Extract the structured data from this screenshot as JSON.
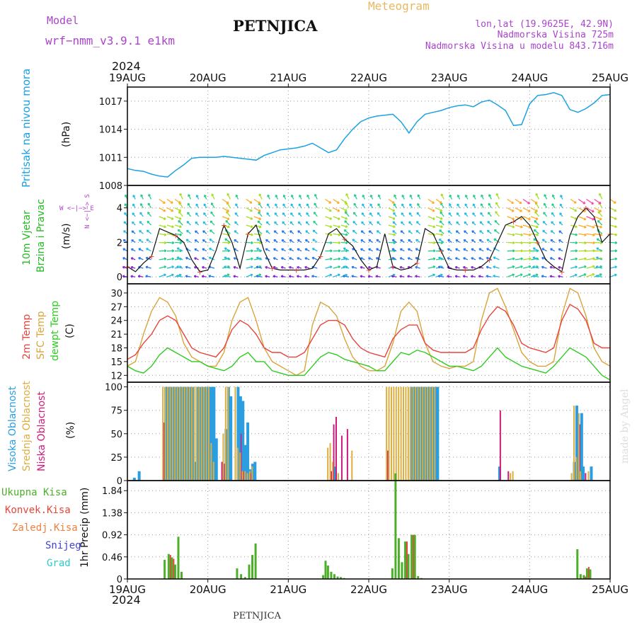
{
  "header": {
    "model_label": "Model",
    "model_name": "wrf−nmm_v3.9.1  e1km",
    "station": "PETNJICA",
    "product": "Meteogram",
    "lonlat": "lon,lat (19.9625E, 42.9N)",
    "elevation": "Nadmorska Visina 725m",
    "model_elevation": "Nadmorska Visina u modelu 843.716m",
    "year_top": "2024",
    "year_bottom": "2024",
    "footer_station": "PETNJICA",
    "watermark": "made by Angel"
  },
  "colors": {
    "pressure": "#1ba1e2",
    "wind_label": "#22bb22",
    "dir_label": "#aa44cc",
    "temp2m": "#e8443c",
    "sfc": "#d9a43a",
    "dew": "#2ecc1f",
    "high_cloud": "#2a9ee0",
    "mid_cloud": "#dcae40",
    "low_cloud": "#d01a7a",
    "precip_total": "#4caf2a",
    "precip_conv": "#e8443c",
    "precip_frz": "#f08040",
    "snow": "#4040dd",
    "hail": "#30c8c8"
  },
  "x_axis": {
    "labels": [
      "19AUG",
      "20AUG",
      "21AUG",
      "22AUG",
      "23AUG",
      "24AUG",
      "25AUG"
    ]
  },
  "chart_data": [
    {
      "type": "line",
      "panel": "pressure",
      "title": "Pritisak na nivou mora",
      "ylabel": "(hPa)",
      "ylim": [
        1008,
        1018.5
      ],
      "yticks": [
        "1008",
        "1011",
        "1014",
        "1017"
      ],
      "x_days": [
        0,
        0.1,
        0.2,
        0.3,
        0.4,
        0.5,
        0.6,
        0.7,
        0.8,
        0.9,
        1.0,
        1.1,
        1.2,
        1.3,
        1.4,
        1.5,
        1.6,
        1.7,
        1.8,
        1.9,
        2.0,
        2.1,
        2.2,
        2.3,
        2.4,
        2.5,
        2.6,
        2.7,
        2.8,
        2.9,
        3.0,
        3.1,
        3.2,
        3.3,
        3.4,
        3.5,
        3.6,
        3.7,
        3.8,
        3.9,
        4.0,
        4.1,
        4.2,
        4.3,
        4.4,
        4.5,
        4.6,
        4.7,
        4.8,
        4.9,
        5.0,
        5.1,
        5.2,
        5.3,
        5.4,
        5.5,
        5.6,
        5.7,
        5.8,
        5.9,
        6.0
      ],
      "values": [
        1009.8,
        1009.6,
        1009.5,
        1009.2,
        1009.0,
        1008.9,
        1009.6,
        1010.2,
        1010.9,
        1011.0,
        1011.0,
        1011.0,
        1011.1,
        1011.0,
        1010.9,
        1010.8,
        1010.7,
        1011.2,
        1011.5,
        1011.8,
        1011.9,
        1012.0,
        1012.2,
        1012.5,
        1012.0,
        1011.5,
        1011.8,
        1013.0,
        1014.0,
        1014.8,
        1015.2,
        1015.4,
        1015.5,
        1015.6,
        1014.8,
        1013.6,
        1014.8,
        1015.6,
        1015.8,
        1016.0,
        1016.3,
        1016.5,
        1016.6,
        1016.4,
        1016.9,
        1017.1,
        1016.6,
        1016.0,
        1014.4,
        1014.5,
        1016.7,
        1017.6,
        1017.7,
        1017.9,
        1017.6,
        1016.1,
        1015.8,
        1016.2,
        1016.8,
        1017.6,
        1017.7
      ]
    },
    {
      "type": "line",
      "panel": "wind",
      "title": "10m Vjetar Brzina i Pravac",
      "ylabel": "(m/s)",
      "ylim": [
        -0.4,
        5.3
      ],
      "yticks": [
        "0",
        "2",
        "4"
      ],
      "direction_legend": "N <−|−> S, W <−|−> E",
      "x_days": [
        0,
        0.1,
        0.2,
        0.3,
        0.4,
        0.5,
        0.6,
        0.7,
        0.8,
        0.9,
        1.0,
        1.1,
        1.2,
        1.3,
        1.4,
        1.5,
        1.6,
        1.7,
        1.8,
        1.9,
        2.0,
        2.1,
        2.2,
        2.3,
        2.4,
        2.5,
        2.6,
        2.7,
        2.8,
        2.9,
        3.0,
        3.1,
        3.2,
        3.3,
        3.4,
        3.5,
        3.6,
        3.7,
        3.8,
        3.9,
        4.0,
        4.1,
        4.2,
        4.3,
        4.4,
        4.5,
        4.6,
        4.7,
        4.8,
        4.9,
        5.0,
        5.1,
        5.2,
        5.3,
        5.4,
        5.5,
        5.6,
        5.7,
        5.8,
        5.9,
        6.0
      ],
      "series": [
        {
          "name": "speed",
          "values": [
            0.6,
            0.3,
            0.8,
            1.2,
            2.8,
            2.6,
            2.4,
            2.0,
            1.0,
            0.3,
            0.4,
            1.5,
            3.0,
            2.0,
            0.5,
            2.5,
            3.0,
            1.5,
            0.5,
            0.4,
            0.4,
            0.4,
            0.4,
            0.5,
            1.2,
            2.5,
            2.8,
            2.2,
            1.8,
            1.0,
            0.4,
            0.6,
            2.5,
            0.6,
            0.4,
            0.5,
            0.8,
            2.8,
            2.5,
            1.5,
            0.5,
            0.4,
            0.4,
            0.4,
            0.6,
            1.0,
            2.0,
            3.0,
            3.2,
            3.5,
            3.0,
            2.0,
            1.0,
            0.6,
            0.3,
            2.4,
            3.5,
            4.0,
            3.5,
            2.0,
            2.5
          ]
        }
      ]
    },
    {
      "type": "line",
      "panel": "temperature",
      "title": "2m Temp / SFC Temp / dewpt Temp",
      "ylabel": "(C)",
      "ylim": [
        10.5,
        32
      ],
      "yticks": [
        "12",
        "15",
        "18",
        "21",
        "24",
        "27",
        "30"
      ],
      "x_days": [
        0,
        0.1,
        0.2,
        0.3,
        0.4,
        0.5,
        0.6,
        0.7,
        0.8,
        0.9,
        1.0,
        1.1,
        1.2,
        1.3,
        1.4,
        1.5,
        1.6,
        1.7,
        1.8,
        1.9,
        2.0,
        2.1,
        2.2,
        2.3,
        2.4,
        2.5,
        2.6,
        2.7,
        2.8,
        2.9,
        3.0,
        3.1,
        3.2,
        3.3,
        3.4,
        3.5,
        3.6,
        3.7,
        3.8,
        3.9,
        4.0,
        4.1,
        4.2,
        4.3,
        4.4,
        4.5,
        4.6,
        4.7,
        4.8,
        4.9,
        5.0,
        5.1,
        5.2,
        5.3,
        5.4,
        5.5,
        5.6,
        5.7,
        5.8,
        5.9,
        6.0
      ],
      "series": [
        {
          "name": "2m Temp",
          "values": [
            15.5,
            16.5,
            19,
            21,
            24,
            25,
            24,
            21,
            18,
            17,
            16.5,
            16,
            18,
            22,
            24,
            23,
            21,
            18,
            17,
            17,
            16,
            16,
            17,
            20,
            23,
            24,
            24,
            23,
            20,
            18,
            17,
            16.5,
            16,
            20,
            22,
            23,
            23,
            19,
            17.5,
            17,
            17,
            17,
            17,
            18,
            22,
            25,
            27,
            26,
            23,
            19,
            18,
            17.5,
            17,
            18,
            24,
            27.5,
            26.5,
            24,
            19,
            18,
            18
          ]
        },
        {
          "name": "SFC Temp",
          "values": [
            14,
            15,
            21,
            26,
            29,
            28,
            25,
            19,
            16,
            15,
            14,
            14,
            17,
            24,
            28,
            29,
            24,
            18,
            15,
            14,
            13,
            12,
            13,
            23,
            28,
            27,
            25,
            20,
            16,
            14,
            13,
            13,
            14,
            19,
            26,
            28,
            26,
            19,
            15,
            14,
            13.5,
            14,
            14,
            15,
            24,
            30,
            31,
            27,
            22,
            17,
            15,
            14,
            14,
            15,
            25,
            31,
            30,
            25,
            18,
            15,
            14
          ]
        },
        {
          "name": "dewpt Temp",
          "values": [
            14,
            13,
            12.5,
            14,
            16.5,
            18,
            17,
            16,
            15,
            15,
            14,
            13.5,
            13,
            14,
            16,
            17,
            15,
            15,
            13,
            12.5,
            12,
            12,
            12,
            14,
            16,
            17,
            16.5,
            15.5,
            15,
            14.5,
            14,
            13,
            13,
            15,
            17,
            16.5,
            17.5,
            17,
            16,
            15,
            14,
            14,
            13.5,
            13,
            14,
            16,
            18,
            16,
            15,
            14,
            13.5,
            13,
            12.5,
            14,
            16,
            18,
            17,
            16,
            14,
            12,
            11
          ]
        }
      ]
    },
    {
      "type": "bar",
      "panel": "clouds",
      "title": "Visoka / Srednja / Niska Oblacnost",
      "ylabel": "(%)",
      "ylim": [
        0,
        105
      ],
      "yticks": [
        "0",
        "25",
        "50",
        "75",
        "100"
      ],
      "x_days": [
        0.06,
        0.12,
        0.42,
        0.45,
        0.48,
        0.51,
        0.54,
        0.57,
        0.6,
        0.63,
        0.66,
        0.69,
        0.72,
        0.75,
        0.78,
        0.81,
        0.84,
        0.87,
        0.9,
        0.93,
        0.96,
        0.99,
        1.02,
        1.05,
        1.08,
        1.11,
        1.14,
        1.17,
        1.2,
        1.23,
        1.26,
        1.35,
        1.38,
        1.41,
        1.44,
        1.47,
        1.5,
        1.53,
        1.56,
        1.59,
        1.62,
        1.65,
        1.68,
        1.71,
        1.74,
        1.8,
        1.86,
        2.5,
        2.53,
        2.56,
        2.6,
        2.63,
        2.66,
        2.7,
        2.73,
        2.76,
        2.8,
        3.2,
        3.23,
        3.26,
        3.29,
        3.32,
        3.35,
        3.38,
        3.41,
        3.44,
        3.47,
        3.5,
        3.53,
        3.56,
        3.59,
        3.62,
        3.65,
        3.68,
        3.71,
        3.74,
        3.77,
        3.8,
        3.83,
        4.6,
        4.7,
        4.74,
        4.77,
        4.8,
        5.53,
        5.56,
        5.59,
        5.62,
        5.64,
        5.66,
        5.7,
        5.74
      ],
      "series": [
        {
          "name": "Visoka Oblacnost",
          "values": [
            3,
            10,
            0,
            100,
            100,
            100,
            100,
            100,
            100,
            100,
            100,
            100,
            100,
            100,
            100,
            20,
            100,
            100,
            100,
            100,
            100,
            100,
            100,
            100,
            45,
            0,
            0,
            0,
            55,
            100,
            90,
            100,
            90,
            85,
            38,
            62,
            12,
            18,
            20,
            0,
            0,
            0,
            0,
            0,
            0,
            0,
            0,
            0,
            0,
            15,
            0,
            0,
            0,
            0,
            0,
            0,
            0,
            0,
            0,
            0,
            0,
            0,
            0,
            0,
            0,
            0,
            0,
            100,
            100,
            100,
            100,
            100,
            100,
            100,
            100,
            100,
            100,
            100,
            100,
            15,
            0,
            0,
            0,
            0,
            20,
            80,
            25,
            72,
            15,
            0,
            0,
            15
          ]
        },
        {
          "name": "Srednja Oblacnost",
          "values": [
            0,
            0,
            0,
            100,
            100,
            100,
            100,
            100,
            100,
            100,
            100,
            100,
            100,
            100,
            100,
            100,
            100,
            100,
            100,
            100,
            100,
            100,
            100,
            40,
            20,
            0,
            0,
            0,
            50,
            100,
            100,
            100,
            35,
            30,
            10,
            10,
            8,
            10,
            15,
            0,
            0,
            0,
            0,
            0,
            0,
            0,
            0,
            35,
            40,
            20,
            0,
            8,
            0,
            0,
            0,
            0,
            32,
            0,
            100,
            100,
            100,
            100,
            100,
            100,
            100,
            100,
            100,
            100,
            100,
            100,
            100,
            100,
            100,
            100,
            100,
            100,
            100,
            100,
            100,
            0,
            0,
            0,
            8,
            10,
            8,
            80,
            25,
            72,
            10,
            0,
            0,
            10
          ]
        },
        {
          "name": "Niska Oblacnost",
          "values": [
            0,
            0,
            62,
            0,
            0,
            0,
            0,
            0,
            0,
            0,
            0,
            0,
            0,
            0,
            0,
            0,
            0,
            0,
            0,
            0,
            0,
            0,
            0,
            0,
            0,
            0,
            20,
            18,
            0,
            0,
            0,
            0,
            50,
            10,
            0,
            0,
            8,
            0,
            0,
            0,
            0,
            0,
            0,
            0,
            0,
            0,
            0,
            10,
            60,
            68,
            0,
            48,
            0,
            55,
            0,
            0,
            0,
            32,
            0,
            0,
            0,
            0,
            0,
            0,
            0,
            0,
            0,
            0,
            0,
            0,
            0,
            0,
            0,
            0,
            0,
            0,
            0,
            0,
            0,
            75,
            10,
            0,
            0,
            0,
            0,
            0,
            60,
            0,
            0,
            8,
            0,
            0
          ]
        }
      ]
    },
    {
      "type": "bar",
      "panel": "precip",
      "title": "1hr Precip",
      "ylabel": "1hr Precip (mm)",
      "ylim": [
        0,
        2.05
      ],
      "yticks": [
        "0",
        "0.46",
        "0.92",
        "1.38",
        "1.84"
      ],
      "legend": [
        "Ukupna Kisa",
        "Konvek.Kisa",
        "Zaledj.Kisa",
        "Snijeg",
        "Grad"
      ],
      "x_days": [
        0.45,
        0.5,
        0.54,
        0.58,
        0.62,
        0.66,
        1.35,
        1.4,
        1.45,
        1.5,
        1.54,
        1.58,
        2.42,
        2.45,
        2.48,
        2.52,
        2.56,
        2.6,
        2.64,
        2.68,
        3.28,
        3.32,
        3.36,
        3.4,
        3.44,
        3.48,
        3.52,
        3.56,
        3.6,
        3.64,
        5.58,
        5.62,
        5.66,
        5.7,
        5.74
      ],
      "series": [
        {
          "name": "Ukupna Kisa",
          "values": [
            0.4,
            0.52,
            0.45,
            0.3,
            0.88,
            0.15,
            0.22,
            0.1,
            0.04,
            0.3,
            0.5,
            0.74,
            0.08,
            0.38,
            0.28,
            0.15,
            0.1,
            0.05,
            0.04,
            0.02,
            0.22,
            2.2,
            0.85,
            0.35,
            0.78,
            0.52,
            0.92,
            0.92,
            0.06,
            0.02,
            0.62,
            0.1,
            0.08,
            0.22,
            0.2
          ]
        },
        {
          "name": "Konvek.Kisa",
          "values": [
            0,
            0.5,
            0.42,
            0,
            0,
            0,
            0,
            0,
            0,
            0,
            0,
            0,
            0,
            0,
            0,
            0,
            0,
            0,
            0,
            0,
            0,
            0,
            0,
            0,
            0.78,
            0,
            0.92,
            0,
            0,
            0,
            0,
            0,
            0.05,
            0.25,
            0
          ]
        }
      ]
    }
  ]
}
